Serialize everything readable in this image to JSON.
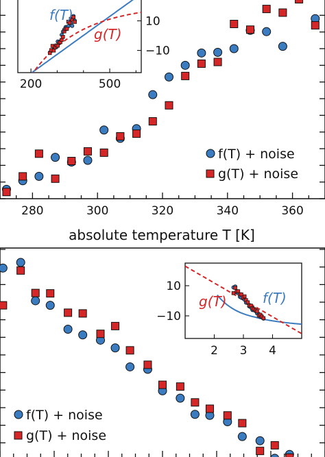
{
  "colors": {
    "f": "#3b7bbf",
    "g": "#d62728",
    "marker_edge": "#111111",
    "axes": "#111111"
  },
  "chart_data": [
    {
      "type": "scatter",
      "panel": "top",
      "xlabel": "absolute temperature T [K]",
      "xlim": [
        270,
        370
      ],
      "ylim": [
        -30,
        30
      ],
      "x_ticks": [
        280,
        300,
        320,
        340,
        360
      ],
      "legend_position": "lower-right",
      "series": [
        {
          "name": "f(T) + noise",
          "marker": "circle",
          "x": [
            272,
            277,
            282,
            287,
            292,
            297,
            302,
            307,
            312,
            317,
            322,
            327,
            332,
            337,
            342,
            347,
            352,
            357,
            362,
            367
          ],
          "y": [
            -27.2,
            -24.6,
            -23.3,
            -17.6,
            -19.0,
            -18.5,
            -9.4,
            -11.9,
            -9.0,
            1.2,
            6.5,
            10.0,
            13.7,
            13.9,
            15.0,
            20.5,
            20.1,
            15.7,
            31.4,
            24.0
          ]
        },
        {
          "name": "g(T) + noise",
          "marker": "square",
          "x": [
            272,
            277,
            282,
            287,
            292,
            297,
            302,
            307,
            312,
            317,
            322,
            327,
            332,
            337,
            342,
            347,
            352,
            357,
            362,
            367
          ],
          "y": [
            -28.0,
            -23.3,
            -16.5,
            -24.0,
            -18.7,
            -15.8,
            -16.2,
            -11.3,
            -10.5,
            -6.8,
            -2.0,
            6.8,
            10.5,
            11.0,
            22.4,
            20.7,
            26.9,
            25.8,
            29.8,
            22.0
          ]
        }
      ],
      "inset": {
        "xlim": [
          150,
          620
        ],
        "ylim": [
          -25,
          25
        ],
        "x_ticks": [
          200,
          500
        ],
        "y_ticks": [
          10,
          -10
        ],
        "curve_labels": [
          "f(T)",
          "g(T)"
        ]
      }
    },
    {
      "type": "scatter",
      "panel": "bottom",
      "xlim": [
        2.65,
        3.75
      ],
      "ylim": [
        -30,
        30
      ],
      "legend_position": "lower-left",
      "series": [
        {
          "name": "f(T) + noise",
          "marker": "circle",
          "x": [
            2.66,
            2.72,
            2.77,
            2.82,
            2.88,
            2.93,
            2.99,
            3.04,
            3.09,
            3.15,
            3.2,
            3.26,
            3.31,
            3.36,
            3.42,
            3.47,
            3.53,
            3.58,
            3.63,
            3.69
          ],
          "y": [
            24.7,
            26.3,
            15.4,
            14.1,
            7.3,
            5.7,
            4.2,
            2.0,
            -3.4,
            -4.1,
            -10.2,
            -12.3,
            -16.9,
            -17.2,
            -19.0,
            -23.2,
            -24.4,
            -29.4,
            -28.3,
            -32.7
          ]
        },
        {
          "name": "g(T) + noise",
          "marker": "square",
          "x": [
            2.66,
            2.72,
            2.77,
            2.82,
            2.88,
            2.93,
            2.99,
            3.04,
            3.09,
            3.15,
            3.2,
            3.26,
            3.31,
            3.36,
            3.42,
            3.47,
            3.53,
            3.58,
            3.63,
            3.69
          ],
          "y": [
            14.1,
            24.0,
            17.6,
            17.5,
            12.0,
            11.8,
            6.0,
            8.2,
            1.3,
            -2.8,
            -8.5,
            -9.0,
            -13.5,
            -15.3,
            -17.2,
            -19.4,
            -27.3,
            -25.7,
            -29.2,
            -32.0
          ]
        }
      ],
      "inset": {
        "xlim": [
          1.0,
          5.0
        ],
        "ylim": [
          -25,
          25
        ],
        "x_ticks": [
          2,
          3,
          4
        ],
        "y_ticks": [
          10,
          -10
        ],
        "curve_labels": [
          "f(T)",
          "g(T)"
        ]
      }
    }
  ]
}
